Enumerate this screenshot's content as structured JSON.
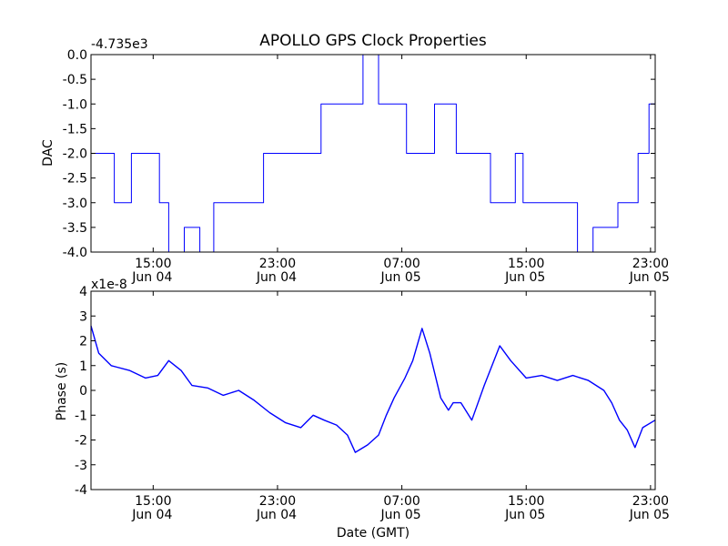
{
  "chart_data": [
    {
      "type": "line",
      "title": "APOLLO GPS Clock Properties",
      "ylabel": "DAC",
      "xlabel": "",
      "offset_label": "-4.735e3",
      "x_unit": "hours since Jun 04 00:00 GMT",
      "xlim": [
        11.0,
        47.3
      ],
      "ylim": [
        -4.0,
        0.0
      ],
      "yticks": [
        0.0,
        -0.5,
        -1.0,
        -1.5,
        -2.0,
        -2.5,
        -3.0,
        -3.5,
        -4.0
      ],
      "ytick_labels": [
        "0.0",
        "-0.5",
        "-1.0",
        "-1.5",
        "-2.0",
        "-2.5",
        "-3.0",
        "-3.5",
        "-4.0"
      ],
      "xticks": [
        15,
        23,
        31,
        39,
        47
      ],
      "xtick_labels": [
        {
          "time": "15:00",
          "date": "Jun 04"
        },
        {
          "time": "23:00",
          "date": "Jun 04"
        },
        {
          "time": "07:00",
          "date": "Jun 05"
        },
        {
          "time": "15:00",
          "date": "Jun 05"
        },
        {
          "time": "23:00",
          "date": "Jun 05"
        }
      ],
      "series": [
        {
          "name": "DAC",
          "color": "#0000ff",
          "x": [
            11.0,
            11.8,
            12.5,
            13.6,
            15.4,
            16.0,
            17.0,
            18.0,
            18.9,
            20.9,
            21.6,
            22.1,
            23.2,
            23.8,
            25.8,
            27.0,
            27.8,
            28.5,
            29.0,
            29.5,
            30.5,
            31.3,
            32.1,
            33.1,
            34.5,
            35.0,
            36.7,
            37.3,
            38.3,
            38.8,
            39.7,
            40.7,
            41.7,
            42.3,
            43.3,
            44.9,
            46.2,
            46.9,
            47.3
          ],
          "y": [
            -2.0,
            -2.0,
            -3.0,
            -2.0,
            -3.0,
            -4.0,
            -3.5,
            -4.0,
            -3.0,
            -3.0,
            -3.0,
            -2.0,
            -2.0,
            -2.0,
            -1.0,
            -1.0,
            -1.0,
            0.0,
            0.0,
            -1.0,
            -1.0,
            -2.0,
            -2.0,
            -1.0,
            -2.0,
            -2.0,
            -3.0,
            -3.0,
            -2.0,
            -3.0,
            -3.0,
            -3.0,
            -3.0,
            -4.0,
            -3.5,
            -3.0,
            -2.0,
            -1.0,
            -1.0
          ]
        }
      ]
    },
    {
      "type": "line",
      "title": "",
      "ylabel": "Phase (s)",
      "xlabel": "Date (GMT)",
      "offset_label": "x1e-8",
      "x_unit": "hours since Jun 04 00:00 GMT",
      "xlim": [
        11.0,
        47.3
      ],
      "ylim": [
        -4,
        4
      ],
      "yticks": [
        4,
        3,
        2,
        1,
        0,
        -1,
        -2,
        -3,
        -4
      ],
      "ytick_labels": [
        "4",
        "3",
        "2",
        "1",
        "0",
        "-1",
        "-2",
        "-3",
        "-4"
      ],
      "xticks": [
        15,
        23,
        31,
        39,
        47
      ],
      "xtick_labels": [
        {
          "time": "15:00",
          "date": "Jun 04"
        },
        {
          "time": "23:00",
          "date": "Jun 04"
        },
        {
          "time": "07:00",
          "date": "Jun 05"
        },
        {
          "time": "15:00",
          "date": "Jun 05"
        },
        {
          "time": "23:00",
          "date": "Jun 05"
        }
      ],
      "series": [
        {
          "name": "Phase",
          "color": "#0000ff",
          "x": [
            11.0,
            11.5,
            12.3,
            13.5,
            14.5,
            15.3,
            16.0,
            16.8,
            17.5,
            18.5,
            19.5,
            20.5,
            21.5,
            22.5,
            23.5,
            24.5,
            25.3,
            26.0,
            26.8,
            27.5,
            28.0,
            28.8,
            29.5,
            30.0,
            30.5,
            31.2,
            31.7,
            32.3,
            32.8,
            33.5,
            34.0,
            34.3,
            34.8,
            35.5,
            36.3,
            37.3,
            38.0,
            39.0,
            40.0,
            41.0,
            42.0,
            43.0,
            44.0,
            44.5,
            45.0,
            45.5,
            46.0,
            46.5,
            47.3
          ],
          "y": [
            2.6,
            1.5,
            1.0,
            0.8,
            0.5,
            0.6,
            1.2,
            0.8,
            0.2,
            0.1,
            -0.2,
            0.0,
            -0.4,
            -0.9,
            -1.3,
            -1.5,
            -1.0,
            -1.2,
            -1.4,
            -1.8,
            -2.5,
            -2.2,
            -1.8,
            -1.0,
            -0.3,
            0.5,
            1.2,
            2.5,
            1.5,
            -0.3,
            -0.8,
            -0.5,
            -0.5,
            -1.2,
            0.2,
            1.8,
            1.2,
            0.5,
            0.6,
            0.4,
            0.6,
            0.4,
            0.0,
            -0.5,
            -1.2,
            -1.6,
            -2.3,
            -1.5,
            -1.2
          ]
        }
      ]
    }
  ]
}
